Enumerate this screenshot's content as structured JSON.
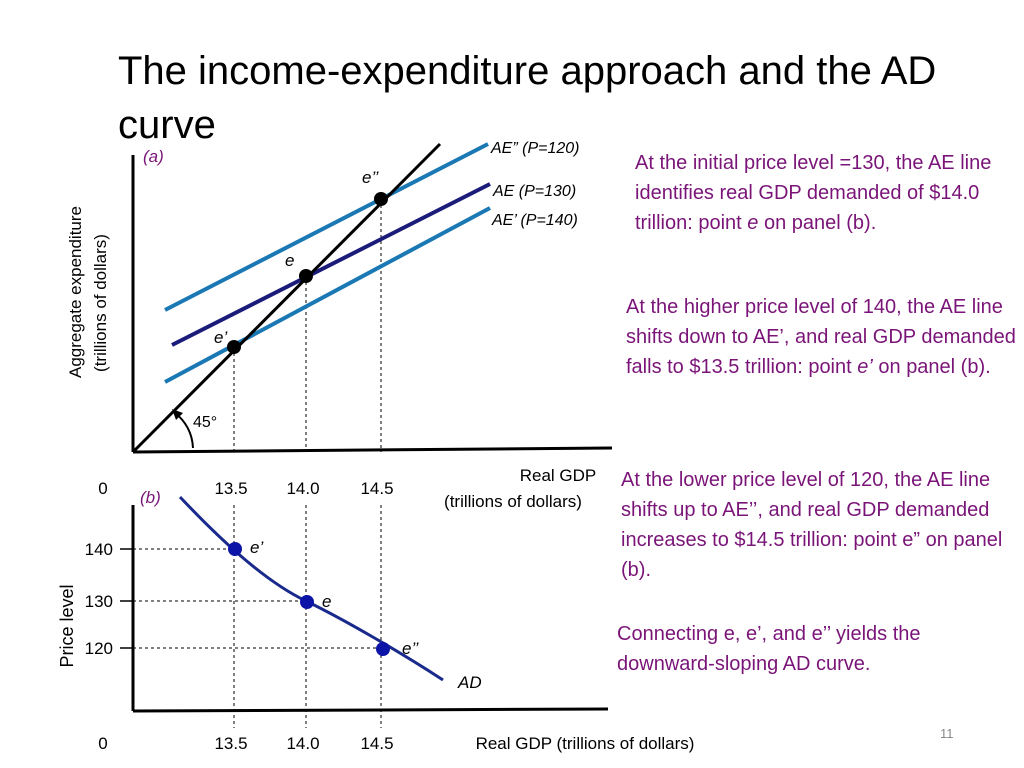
{
  "title": "The income-expenditure approach and the AD curve",
  "slide_number": "11",
  "colors": {
    "ae_shifted": "#1a78b4",
    "ae_initial": "#1b1b7a",
    "ad_curve": "#1a2a8c",
    "ad_points": "#0b14a6",
    "note_text": "#7a1478",
    "axes": "#000000"
  },
  "panel_a": {
    "label": "(a)",
    "y_axis_label_line1": "Aggregate expenditure",
    "y_axis_label_line2": "(trillions of dollars)",
    "x_axis_label_line1": "Real GDP",
    "x_axis_label_line2": "(trillions of dollars)",
    "origin_label": "0",
    "x_ticks": [
      "13.5",
      "14.0",
      "14.5"
    ],
    "angle_label": "45°",
    "lines": [
      {
        "label": "AE” (P=120)",
        "price_level": 120
      },
      {
        "label": "AE (P=130)",
        "price_level": 130
      },
      {
        "label": "AE’ (P=140)",
        "price_level": 140
      }
    ],
    "points": [
      {
        "label": "e’’",
        "real_gdp": 14.5
      },
      {
        "label": "e",
        "real_gdp": 14.0
      },
      {
        "label": "e’",
        "real_gdp": 13.5
      }
    ]
  },
  "panel_b": {
    "label": "(b)",
    "y_axis_label": "Price level",
    "x_axis_label": "Real GDP (trillions of dollars)",
    "origin_label": "0",
    "y_ticks": [
      "140",
      "130",
      "120"
    ],
    "x_ticks": [
      "13.5",
      "14.0",
      "14.5"
    ],
    "curve_label": "AD",
    "points": [
      {
        "label": "e’",
        "real_gdp": 13.5,
        "price_level": 140
      },
      {
        "label": "e",
        "real_gdp": 14.0,
        "price_level": 130
      },
      {
        "label": "e’’",
        "real_gdp": 14.5,
        "price_level": 120
      }
    ]
  },
  "notes": {
    "initial": {
      "before": "At the initial price level =130, the AE line identifies real GDP demanded of $14.0 trillion: point ",
      "italic": "e",
      "after": " on panel (b)."
    },
    "higher": {
      "before": "At the higher price level of 140, the AE line shifts down to AE’, and real GDP demanded falls to $13.5 trillion: point ",
      "italic": "e’",
      "after": " on panel (b)."
    },
    "lower": "At the lower price level of 120, the AE line shifts up to AE’’, and real GDP demanded increases to $14.5 trillion: point e” on panel (b).",
    "connect": "Connecting e, e’, and e’’ yields the downward-sloping AD curve."
  }
}
